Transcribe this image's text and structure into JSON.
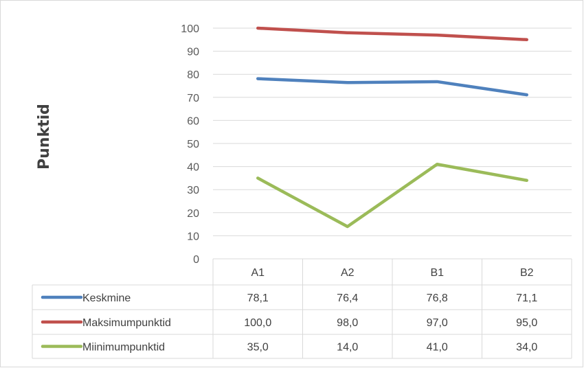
{
  "chart_data": {
    "type": "line",
    "ylabel": "Punktid",
    "xlabel": "",
    "title": "",
    "categories": [
      "A1",
      "A2",
      "B1",
      "B2"
    ],
    "ylim": [
      0,
      100
    ],
    "yticks": [
      0,
      10,
      20,
      30,
      40,
      50,
      60,
      70,
      80,
      90,
      100
    ],
    "grid": true,
    "legend": "data-table",
    "series": [
      {
        "name": "Keskmine",
        "color": "#4f81bd",
        "values": [
          78.1,
          76.4,
          76.8,
          71.1
        ],
        "labels": [
          "78,1",
          "76,4",
          "76,8",
          "71,1"
        ]
      },
      {
        "name": "Maksimumpunktid",
        "color": "#c0504d",
        "values": [
          100.0,
          98.0,
          97.0,
          95.0
        ],
        "labels": [
          "100,0",
          "98,0",
          "97,0",
          "95,0"
        ]
      },
      {
        "name": "Miinimumpunktid",
        "color": "#9bbb59",
        "values": [
          35.0,
          14.0,
          41.0,
          34.0
        ],
        "labels": [
          "35,0",
          "14,0",
          "41,0",
          "34,0"
        ]
      }
    ]
  }
}
